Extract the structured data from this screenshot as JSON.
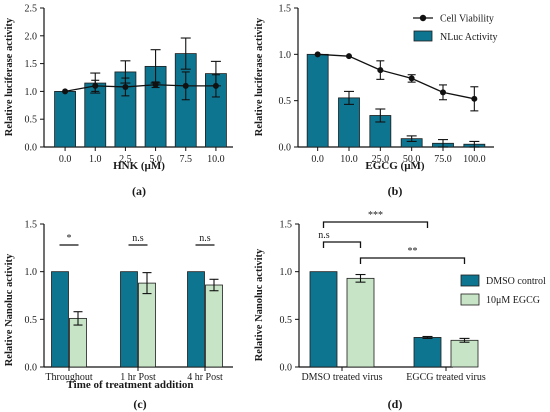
{
  "colors": {
    "bar_teal": "#0e7591",
    "bar_light_green": "#c7e4c6",
    "bar_stroke": "#1d1d1d",
    "line": "#111111"
  },
  "chart_data": [
    {
      "panel_label": "(a)",
      "type": "bar",
      "categories": [
        "0.0",
        "1.0",
        "2.5",
        "5.0",
        "7.5",
        "10.0"
      ],
      "series": [
        {
          "type": "bar",
          "values": [
            1.0,
            1.15,
            1.35,
            1.45,
            1.68,
            1.32
          ],
          "errors": [
            0.0,
            0.18,
            0.2,
            0.3,
            0.28,
            0.22
          ]
        },
        {
          "type": "line",
          "values": [
            1.0,
            1.1,
            1.08,
            1.12,
            1.1,
            1.1
          ],
          "errors": [
            0.0,
            0.1,
            0.16,
            0.05,
            0.25,
            0.2
          ]
        }
      ],
      "xlabel": "HNK (µM)",
      "ylabel": "Relative luciferase activity",
      "ylim": [
        0,
        2.5
      ],
      "yticks": [
        "0.0",
        "0.5",
        "1.0",
        "1.5",
        "2.0",
        "2.5"
      ]
    },
    {
      "panel_label": "(b)",
      "type": "bar",
      "categories": [
        "0.0",
        "10.0",
        "25.0",
        "50.0",
        "75.0",
        "100.0"
      ],
      "series": [
        {
          "name": "NLuc Activity",
          "type": "bar",
          "values": [
            1.0,
            0.53,
            0.34,
            0.09,
            0.04,
            0.03
          ],
          "errors": [
            0.0,
            0.07,
            0.07,
            0.03,
            0.04,
            0.03
          ]
        },
        {
          "name": "Cell Viability",
          "type": "line",
          "values": [
            1.0,
            0.98,
            0.83,
            0.74,
            0.59,
            0.52
          ],
          "errors": [
            0.0,
            0.0,
            0.1,
            0.04,
            0.08,
            0.13
          ]
        }
      ],
      "xlabel": "EGCG (µM)",
      "ylabel": "Relative luciferase activity",
      "ylim": [
        0,
        1.5
      ],
      "yticks": [
        "0.0",
        "0.5",
        "1.0",
        "1.5"
      ],
      "legend": [
        "Cell Viability",
        "NLuc Activity"
      ],
      "legend_position": "top-right"
    },
    {
      "panel_label": "(c)",
      "type": "bar",
      "categories": [
        "Throughout",
        "1 hr Post",
        "4 hr Post"
      ],
      "series": [
        {
          "type": "bar",
          "color": "teal",
          "values": [
            1.0,
            1.0,
            1.0
          ],
          "errors": [
            0.0,
            0.0,
            0.0
          ]
        },
        {
          "type": "bar",
          "color": "light_green",
          "values": [
            0.51,
            0.88,
            0.86
          ],
          "errors": [
            0.07,
            0.11,
            0.06
          ]
        }
      ],
      "significance": [
        "*",
        "n.s",
        "n.s"
      ],
      "xlabel": "Time of treatment addition",
      "ylabel": "Relative Nanoluc activity",
      "ylim": [
        0,
        1.5
      ],
      "yticks": [
        "0.0",
        "0.5",
        "1.0",
        "1.5"
      ]
    },
    {
      "panel_label": "(d)",
      "type": "bar",
      "categories": [
        "DMSO treated virus",
        "EGCG treated virus"
      ],
      "series": [
        {
          "name": "DMSO control",
          "type": "bar",
          "color": "teal",
          "values": [
            1.0,
            0.31
          ],
          "errors": [
            0.0,
            0.01
          ]
        },
        {
          "name": "10μM EGCG",
          "type": "bar",
          "color": "light_green",
          "values": [
            0.93,
            0.28
          ],
          "errors": [
            0.04,
            0.02
          ]
        }
      ],
      "significance": [
        "***",
        "n.s",
        "**"
      ],
      "ylabel": "Relative Nanoluc activity",
      "ylim": [
        0,
        1.5
      ],
      "yticks": [
        "0.0",
        "0.5",
        "1.0",
        "1.5"
      ],
      "legend": [
        "DMSO control",
        "10μM EGCG"
      ],
      "legend_position": "right"
    }
  ]
}
